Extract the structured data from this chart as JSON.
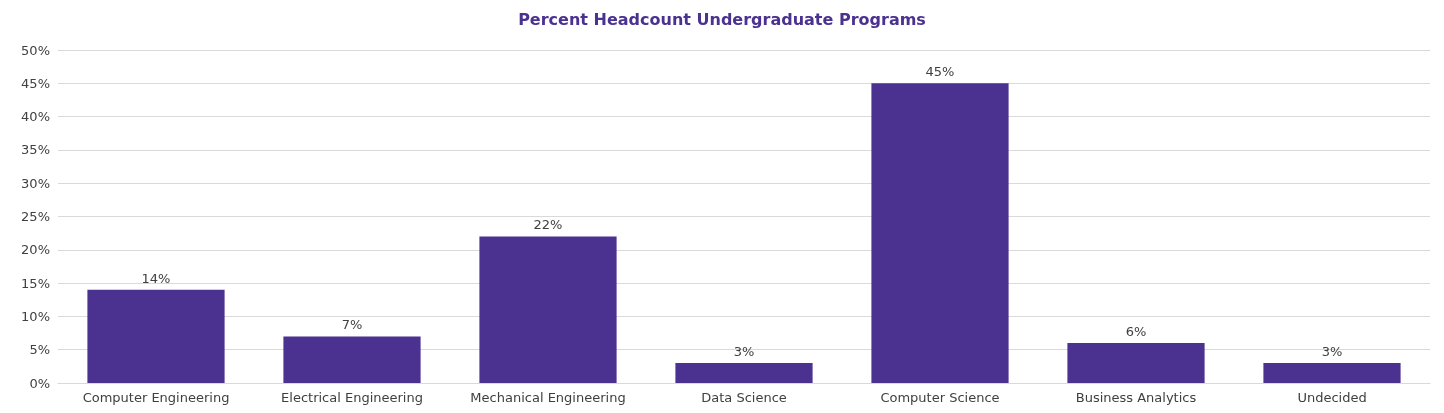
{
  "chart_data": {
    "type": "bar",
    "title": "Percent Headcount Undergraduate Programs",
    "categories": [
      "Computer Engineering",
      "Electrical Engineering",
      "Mechanical Engineering",
      "Data Science",
      "Computer Science",
      "Business Analytics",
      "Undecided"
    ],
    "values": [
      14,
      7,
      22,
      3,
      45,
      6,
      3
    ],
    "value_labels": [
      "14%",
      "7%",
      "22%",
      "3%",
      "45%",
      "6%",
      "3%"
    ],
    "color": "#4b3190",
    "ylim": [
      0,
      50
    ],
    "yticks": [
      {
        "value": 0,
        "label": "0%"
      },
      {
        "value": 5,
        "label": "5%"
      },
      {
        "value": 10,
        "label": "10%"
      },
      {
        "value": 15,
        "label": "15%"
      },
      {
        "value": 20,
        "label": "20%"
      },
      {
        "value": 25,
        "label": "25%"
      },
      {
        "value": 30,
        "label": "30%"
      },
      {
        "value": 35,
        "label": "35%"
      },
      {
        "value": 40,
        "label": "40%"
      },
      {
        "value": 45,
        "label": "45%"
      },
      {
        "value": 50,
        "label": "50%"
      }
    ],
    "grid": "y"
  }
}
